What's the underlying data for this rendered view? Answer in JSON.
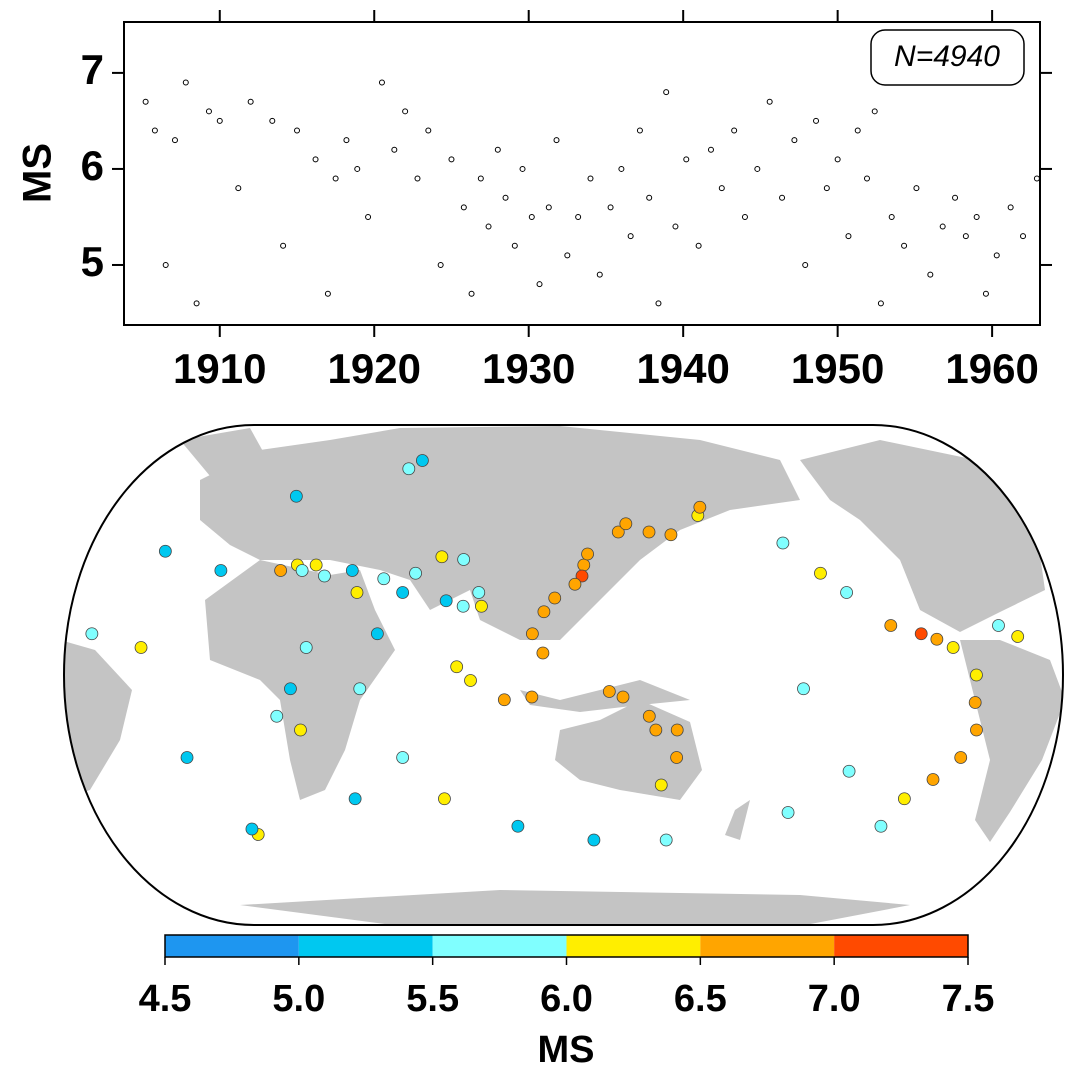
{
  "chart_data": [
    {
      "type": "scatter",
      "ylabel": "MS",
      "annotation": "N=4940",
      "color": "#000000",
      "xlim": [
        1903.8,
        1963.1
      ],
      "xticks": [
        1910,
        1920,
        1930,
        1940,
        1950,
        1960
      ],
      "ylim": [
        4.375,
        7.53
      ],
      "yticks": [
        5,
        6,
        7
      ],
      "x": [
        1905.2,
        1905.8,
        1906.5,
        1907.1,
        1907.8,
        1908.5,
        1909.3,
        1910.0,
        1911.2,
        1912.0,
        1913.4,
        1914.1,
        1915.0,
        1916.2,
        1917.0,
        1917.5,
        1918.2,
        1918.9,
        1919.6,
        1920.5,
        1921.3,
        1922.0,
        1922.8,
        1923.5,
        1924.3,
        1925.0,
        1925.8,
        1926.3,
        1926.9,
        1927.4,
        1928.0,
        1928.5,
        1929.1,
        1929.6,
        1930.2,
        1930.7,
        1931.3,
        1931.8,
        1932.5,
        1933.2,
        1934.0,
        1934.6,
        1935.3,
        1936.0,
        1936.6,
        1937.2,
        1937.8,
        1938.4,
        1938.9,
        1939.5,
        1940.2,
        1941.0,
        1941.8,
        1942.5,
        1943.3,
        1944.0,
        1944.8,
        1945.6,
        1946.4,
        1947.2,
        1947.9,
        1948.6,
        1949.3,
        1950.0,
        1950.7,
        1951.3,
        1951.9,
        1952.4,
        1952.8,
        1953.5,
        1954.3,
        1955.1,
        1956.0,
        1956.8,
        1957.6,
        1958.3,
        1959.0,
        1959.6,
        1960.3,
        1961.2,
        1962.0,
        1962.9
      ],
      "y": [
        6.7,
        6.4,
        5.0,
        6.3,
        6.9,
        4.6,
        6.6,
        6.5,
        5.8,
        6.7,
        6.5,
        5.2,
        6.4,
        6.1,
        4.7,
        5.9,
        6.3,
        6.0,
        5.5,
        6.9,
        6.2,
        6.6,
        5.9,
        6.4,
        5.0,
        6.1,
        5.6,
        4.7,
        5.9,
        5.4,
        6.2,
        5.7,
        5.2,
        6.0,
        5.5,
        4.8,
        5.6,
        6.3,
        5.1,
        5.5,
        5.9,
        4.9,
        5.6,
        6.0,
        5.3,
        6.4,
        5.7,
        4.6,
        6.8,
        5.4,
        6.1,
        5.2,
        6.2,
        5.8,
        6.4,
        5.5,
        6.0,
        6.7,
        5.7,
        6.3,
        5.0,
        6.5,
        5.8,
        6.1,
        5.3,
        6.4,
        5.9,
        6.6,
        4.6,
        5.5,
        5.2,
        5.8,
        4.9,
        5.4,
        5.7,
        5.3,
        5.5,
        4.7,
        5.1,
        5.6,
        5.3,
        5.9
      ]
    },
    {
      "type": "map",
      "lon": [
        142,
        144,
        141,
        138,
        130,
        126,
        122,
        126,
        122,
        112,
        100,
        95,
        150,
        155,
        165,
        168,
        176,
        178,
        175,
        160,
        165,
        175,
        -175,
        -155,
        -150,
        -125,
        -120,
        -115,
        -105,
        -95,
        -90,
        -85,
        -78,
        -77,
        -72,
        -70,
        -72,
        -74,
        -65,
        -30,
        -28,
        -15,
        -20,
        -40,
        -60,
        -65,
        -45,
        -30,
        10,
        20,
        -10,
        15,
        20,
        24,
        28,
        35,
        45,
        52,
        60,
        72,
        80,
        90,
        100,
        102,
        95,
        88,
        70,
        40,
        35,
        28,
        35,
        60,
        65,
        70,
        80,
        40,
        -110,
        -120,
        -140,
        -170,
        110,
        150
      ],
      "lat": [
        40,
        44,
        36,
        33,
        28,
        23,
        15,
        8,
        -8,
        -9,
        -2,
        3,
        -6,
        -8,
        -15,
        -20,
        -20,
        -30,
        -40,
        52,
        55,
        52,
        51,
        58,
        61,
        48,
        37,
        30,
        18,
        15,
        13,
        10,
        0,
        -10,
        -20,
        -30,
        -38,
        -45,
        -55,
        -58,
        -56,
        -30,
        10,
        15,
        14,
        18,
        45,
        65,
        75,
        78,
        38,
        38,
        40,
        38,
        40,
        36,
        38,
        30,
        35,
        37,
        43,
        42,
        30,
        25,
        25,
        27,
        30,
        10,
        -5,
        -15,
        -20,
        -5,
        15,
        -30,
        -45,
        -45,
        -35,
        -50,
        -5,
        -60,
        -55,
        -60
      ],
      "ms": [
        6.7,
        6.6,
        7.1,
        6.8,
        6.7,
        6.6,
        6.8,
        6.9,
        6.7,
        6.6,
        6.4,
        6.3,
        6.8,
        6.6,
        6.7,
        6.9,
        6.5,
        6.6,
        6.4,
        6.7,
        6.6,
        6.8,
        6.6,
        6.2,
        6.5,
        5.8,
        6.1,
        5.5,
        6.8,
        7.1,
        6.6,
        6.3,
        6.4,
        6.6,
        6.5,
        6.6,
        6.7,
        6.4,
        5.8,
        6.1,
        5.4,
        5.2,
        6.0,
        5.6,
        6.0,
        5.9,
        5.0,
        5.2,
        5.6,
        5.3,
        5.1,
        6.5,
        6.1,
        5.8,
        6.3,
        5.7,
        5.4,
        6.0,
        5.5,
        5.8,
        6.2,
        5.7,
        5.6,
        6.1,
        5.9,
        5.4,
        5.1,
        5.6,
        5.2,
        5.9,
        6.1,
        5.6,
        5.3,
        5.8,
        6.3,
        5.4,
        5.9,
        5.5,
        5.8,
        5.6,
        5.4,
        5.2
      ]
    },
    {
      "type": "colorbar",
      "xlabel": "MS",
      "bins": [
        4.5,
        5.0,
        5.5,
        6.0,
        6.5,
        7.0,
        7.5
      ],
      "colors": [
        "#1e96f0",
        "#00c8f0",
        "#80ffff",
        "#ffee00",
        "#ffa500",
        "#ff4a00"
      ],
      "ticks": [
        {
          "value": 4.5,
          "label": "4.5"
        },
        {
          "value": 5.0,
          "label": "5.0"
        },
        {
          "value": 5.5,
          "label": "5.5"
        },
        {
          "value": 6.0,
          "label": "6.0"
        },
        {
          "value": 6.5,
          "label": "6.5"
        },
        {
          "value": 7.0,
          "label": "7.0"
        },
        {
          "value": 7.5,
          "label": "7.5"
        }
      ]
    }
  ]
}
